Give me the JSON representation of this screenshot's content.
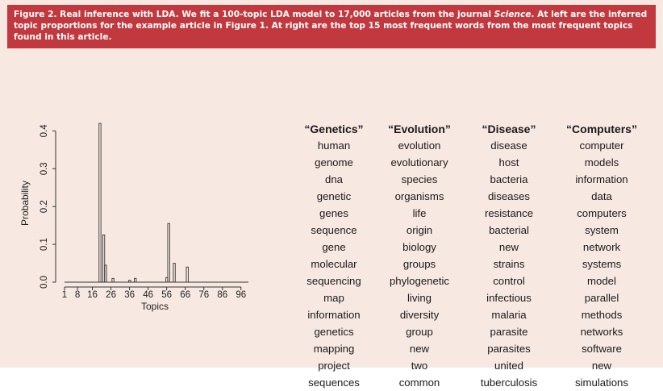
{
  "caption": {
    "part1": "Figure 2. Real inference with LDA. We fit a 100-topic LDA model to 17,000 articles from the journal ",
    "journal": "Science",
    "part2": ". At left are the inferred topic proportions for the example article in Figure 1. At right are the top 15 most frequent words from the most frequent topics found in this article."
  },
  "colors": {
    "caption_bg": "#c1393f",
    "panel_bg": "#f7e8e2",
    "bar": "#333333"
  },
  "chart_data": {
    "type": "bar",
    "xlabel": "Topics",
    "ylabel": "Probability",
    "x_ticks": [
      "1",
      "8",
      "16",
      "26",
      "36",
      "46",
      "56",
      "66",
      "76",
      "86",
      "96"
    ],
    "y_ticks": [
      "0.0",
      "0.1",
      "0.2",
      "0.3",
      "0.4"
    ],
    "xlim": [
      1,
      100
    ],
    "ylim": [
      0,
      0.42
    ],
    "x": [
      20,
      22,
      23,
      27,
      36,
      39,
      56,
      57,
      60,
      67
    ],
    "values": [
      0.42,
      0.125,
      0.045,
      0.01,
      0.005,
      0.01,
      0.012,
      0.155,
      0.05,
      0.04
    ]
  },
  "topics": [
    {
      "title": "“Genetics”",
      "words": [
        "human",
        "genome",
        "dna",
        "genetic",
        "genes",
        "sequence",
        "gene",
        "molecular",
        "sequencing",
        "map",
        "information",
        "genetics",
        "mapping",
        "project",
        "sequences"
      ]
    },
    {
      "title": "“Evolution”",
      "words": [
        "evolution",
        "evolutionary",
        "species",
        "organisms",
        "life",
        "origin",
        "biology",
        "groups",
        "phylogenetic",
        "living",
        "diversity",
        "group",
        "new",
        "two",
        "common"
      ]
    },
    {
      "title": "“Disease”",
      "words": [
        "disease",
        "host",
        "bacteria",
        "diseases",
        "resistance",
        "bacterial",
        "new",
        "strains",
        "control",
        "infectious",
        "malaria",
        "parasite",
        "parasites",
        "united",
        "tuberculosis"
      ]
    },
    {
      "title": "“Computers”",
      "words": [
        "computer",
        "models",
        "information",
        "data",
        "computers",
        "system",
        "network",
        "systems",
        "model",
        "parallel",
        "methods",
        "networks",
        "software",
        "new",
        "simulations"
      ]
    }
  ]
}
